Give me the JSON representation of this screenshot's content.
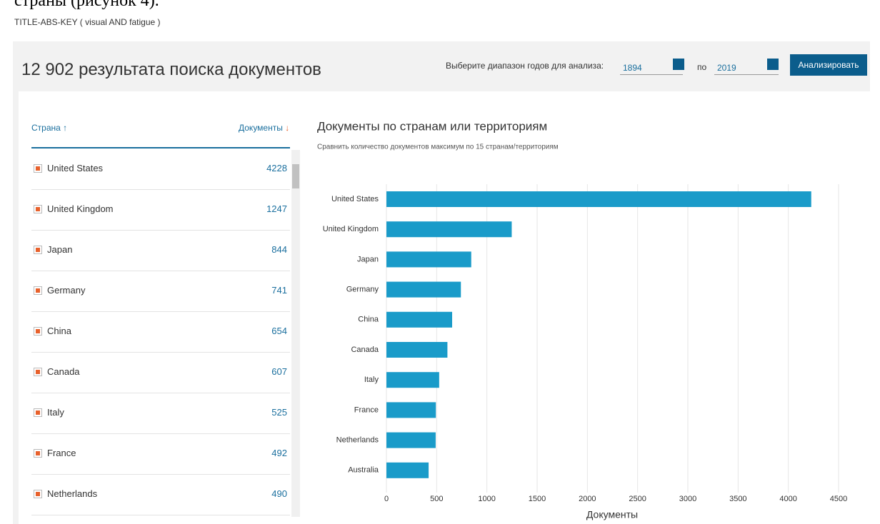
{
  "page_caption": "страны (рисунок 4).",
  "query": "TITLE-ABS-KEY ( visual  AND fatigue )",
  "results_title": "12 902 результата поиска документов",
  "year_range": {
    "label": "Выберите диапазон годов для анализа:",
    "from": "1894",
    "to_label": "по",
    "to": "2019",
    "button": "Анализировать"
  },
  "table": {
    "columns": [
      "Страна",
      "Документы"
    ],
    "rows": [
      [
        "United States",
        "4228"
      ],
      [
        "United Kingdom",
        "1247"
      ],
      [
        "Japan",
        "844"
      ],
      [
        "Germany",
        "741"
      ],
      [
        "China",
        "654"
      ],
      [
        "Canada",
        "607"
      ],
      [
        "Italy",
        "525"
      ],
      [
        "France",
        "492"
      ],
      [
        "Netherlands",
        "490"
      ]
    ]
  },
  "chart_data": {
    "type": "hbar",
    "title": "Документы по странам или территориям",
    "subtitle": "Сравнить количество документов максимум по 15 странам/территориям",
    "categories": [
      "United States",
      "United Kingdom",
      "Japan",
      "Germany",
      "China",
      "Canada",
      "Italy",
      "France",
      "Netherlands",
      "Australia"
    ],
    "values": [
      4228,
      1247,
      844,
      741,
      654,
      607,
      525,
      492,
      490,
      420
    ],
    "color": "#1a9bc9",
    "xlabel": "Документы",
    "xlim": [
      0,
      4500
    ],
    "xticks": [
      0,
      500,
      1000,
      1500,
      2000,
      2500,
      3000,
      3500,
      4000,
      4500
    ],
    "grid": true
  }
}
